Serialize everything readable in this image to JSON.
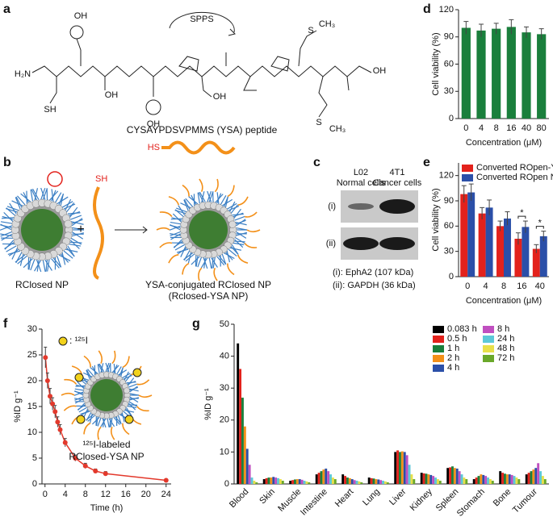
{
  "figure": {
    "panel_labels": [
      "a",
      "b",
      "c",
      "d",
      "e",
      "f",
      "g"
    ],
    "a": {
      "arrow_label": "SPPS",
      "atoms": [
        "OH",
        "H₂N",
        "SH",
        "OH",
        "OH",
        "OH",
        "S",
        "CH₃",
        "S",
        "CH₃",
        "OH"
      ],
      "peptide": "CYSAYPDSVPMMS (YSA) peptide",
      "thiol": "HS"
    },
    "b": {
      "thiol": "SH",
      "left_label": "RClosed NP",
      "right_label": "YSA-conjugated RClosed NP",
      "right_sublabel": "(Rclosed-YSA NP)"
    },
    "c": {
      "col1": [
        "L02",
        "Normal cells"
      ],
      "col2": [
        "4T1",
        "Cancer cells"
      ],
      "rows": [
        "(i)",
        "(ii)"
      ],
      "legend": [
        "(i): EphA2 (107 kDa)",
        "(ii): GAPDH (36 kDa)"
      ]
    }
  },
  "chart_data": [
    {
      "type": "bar",
      "categories": [
        "0",
        "4",
        "8",
        "16",
        "40",
        "80"
      ],
      "values": [
        100,
        97,
        99,
        101,
        95,
        93
      ],
      "errors": [
        7,
        7,
        6,
        8,
        6,
        6
      ],
      "color": "#1a7f3c",
      "ylim": [
        0,
        120
      ],
      "yticks": [
        0,
        30,
        60,
        90,
        120
      ],
      "xlabel": "Concentration (μM)",
      "ylabel": "Cell viability (%)"
    },
    {
      "type": "bar",
      "categories": [
        "0",
        "4",
        "8",
        "16",
        "40"
      ],
      "series": [
        {
          "name": "Converted ROpen-YSA NPs",
          "color": "#e3221c",
          "values": [
            98,
            75,
            60,
            45,
            33
          ],
          "errors": [
            10,
            7,
            6,
            7,
            5
          ]
        },
        {
          "name": "Converted ROpen NPs",
          "color": "#2b4fa8",
          "values": [
            100,
            82,
            69,
            59,
            48
          ],
          "errors": [
            10,
            9,
            8,
            7,
            6
          ]
        }
      ],
      "ylim": [
        0,
        135
      ],
      "yticks": [
        0,
        30,
        60,
        90,
        120
      ],
      "xlabel": "Concentration (μM)",
      "ylabel": "Cell viability (%)",
      "legend": "upper left",
      "annotations": [
        "*",
        "*"
      ]
    },
    {
      "type": "line",
      "x": [
        0.083,
        0.5,
        1,
        1.5,
        2,
        2.5,
        3,
        4,
        6,
        8,
        10,
        12,
        24
      ],
      "values": [
        24.5,
        20,
        17,
        15.5,
        14,
        12,
        10.5,
        8,
        5,
        3.5,
        2.5,
        2,
        0.7
      ],
      "errors": [
        2,
        1.5,
        1.5,
        1.2,
        1.2,
        1,
        1,
        0.8,
        0.6,
        0.5,
        0.4,
        0.4,
        0.2
      ],
      "color": "#e3392c",
      "xlim": [
        -0.6,
        25
      ],
      "xticks": [
        0,
        4,
        8,
        12,
        16,
        20,
        24
      ],
      "ylim": [
        0,
        30
      ],
      "yticks": [
        0,
        5,
        10,
        15,
        20,
        25,
        30
      ],
      "xlabel": "Time (h)",
      "ylabel": "%ID g⁻¹",
      "annotations": [
        ": ¹²⁵I",
        "¹²⁵I-labeled",
        "RClosed-YSA NP"
      ]
    },
    {
      "type": "bar",
      "categories": [
        "Blood",
        "Skin",
        "Muscle",
        "Intestine",
        "Heart",
        "Lung",
        "Liver",
        "Kidney",
        "Spleen",
        "Stomach",
        "Bone",
        "Tumour"
      ],
      "series": [
        {
          "name": "0.083 h",
          "color": "#000000",
          "values": [
            44,
            1.5,
            1,
            3,
            3,
            2,
            10,
            3.5,
            5,
            1.5,
            4,
            3
          ]
        },
        {
          "name": "0.5 h",
          "color": "#e3221c",
          "values": [
            36,
            1.8,
            1.2,
            3.5,
            2.5,
            1.8,
            10.5,
            3.3,
            5.2,
            2,
            3.5,
            3.5
          ]
        },
        {
          "name": "1 h",
          "color": "#1a7f3c",
          "values": [
            27,
            2,
            1.4,
            4,
            2,
            1.7,
            10,
            3.2,
            5.5,
            2.5,
            3.2,
            4
          ]
        },
        {
          "name": "2 h",
          "color": "#f39019",
          "values": [
            18,
            2,
            1.5,
            4.5,
            1.8,
            1.5,
            10.2,
            3,
            5,
            3,
            3,
            4.5
          ]
        },
        {
          "name": "4 h",
          "color": "#2b4fa8",
          "values": [
            11,
            2.2,
            1.5,
            4.8,
            1.5,
            1.4,
            10,
            2.8,
            4.8,
            2.8,
            3,
            5
          ]
        },
        {
          "name": "8 h",
          "color": "#c04fc0",
          "values": [
            6,
            2,
            1.3,
            4,
            1.2,
            1.2,
            9,
            2.5,
            4,
            2.5,
            2.8,
            6.5
          ]
        },
        {
          "name": "24 h",
          "color": "#5cc8d8",
          "values": [
            2,
            1.8,
            1,
            3,
            1,
            1,
            6,
            2,
            3,
            2,
            2.5,
            4
          ]
        },
        {
          "name": "48 h",
          "color": "#e8e04a",
          "values": [
            1,
            1.5,
            0.8,
            2,
            0.8,
            0.8,
            3,
            1.5,
            2,
            1.5,
            2,
            2.5
          ]
        },
        {
          "name": "72 h",
          "color": "#6aa82a",
          "values": [
            0.5,
            1,
            0.5,
            1.5,
            0.5,
            0.5,
            1.5,
            1,
            1.5,
            1,
            1.5,
            1.5
          ]
        }
      ],
      "ylim": [
        0,
        50
      ],
      "yticks": [
        0,
        10,
        20,
        30,
        40,
        50
      ],
      "ylabel": "%ID g⁻¹",
      "legend": "upper right"
    }
  ]
}
